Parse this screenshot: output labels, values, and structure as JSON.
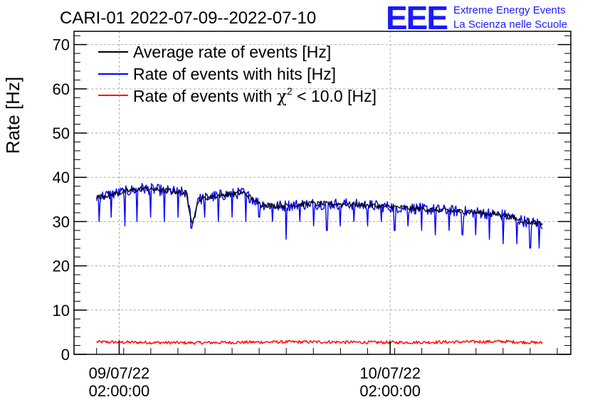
{
  "colors": {
    "average": "#000000",
    "hits": "#0000ff",
    "chi2": "#ff0000",
    "logo": "#1a1aff"
  },
  "header": {
    "title": "CARI-01 2022-07-09--2022-07-10",
    "logo_text": "EEE",
    "logo_line1": "Extreme Energy Events",
    "logo_line2": "La Scienza nelle Scuole"
  },
  "chart_data": {
    "type": "line",
    "title": "CARI-01 2022-07-09--2022-07-10",
    "xlabel": "",
    "ylabel": "Rate [Hz]",
    "ylim": [
      0,
      73
    ],
    "yticks": [
      0,
      10,
      20,
      30,
      40,
      50,
      60,
      70
    ],
    "x_unit": "hours since 2022-07-08 22:00",
    "xlim": [
      0,
      44
    ],
    "xticks": [
      {
        "x": 4,
        "label_date": "09/07/22",
        "label_time": "02:00:00"
      },
      {
        "x": 28,
        "label_date": "10/07/22",
        "label_time": "02:00:00"
      }
    ],
    "grid": true,
    "legend_position": "top-left",
    "series": [
      {
        "name": "Average rate of events [Hz]",
        "color": "#000000",
        "x": [
          2,
          4,
          6,
          8,
          9.9,
          10.2,
          10.5,
          11,
          13,
          15,
          16.5,
          18,
          21,
          24,
          27,
          30,
          33,
          36,
          38,
          40,
          41.5
        ],
        "y": [
          35.5,
          36.5,
          37.5,
          37,
          36.5,
          33,
          29.5,
          35,
          36,
          36.5,
          34,
          33.5,
          34,
          34,
          33.5,
          33,
          32.5,
          32,
          31.5,
          30,
          29.5
        ]
      },
      {
        "name": "Rate of events with hits [Hz]",
        "color": "#0000ff",
        "x": [
          2,
          4,
          6,
          8,
          9.9,
          10.2,
          10.5,
          11,
          13,
          15,
          16.5,
          18,
          21,
          24,
          27,
          30,
          33,
          36,
          38,
          40,
          41.5
        ],
        "y": [
          35.5,
          36.5,
          37.5,
          37,
          36.5,
          33,
          29.5,
          35,
          36,
          36.5,
          34,
          33.5,
          34,
          34,
          33.5,
          33,
          32.5,
          32,
          31.5,
          30,
          29.5
        ],
        "dips": [
          {
            "x": 2.2,
            "y": 30
          },
          {
            "x": 3.3,
            "y": 31
          },
          {
            "x": 4.5,
            "y": 29
          },
          {
            "x": 5.6,
            "y": 30
          },
          {
            "x": 6.8,
            "y": 31
          },
          {
            "x": 8.0,
            "y": 30
          },
          {
            "x": 9.2,
            "y": 31
          },
          {
            "x": 10.4,
            "y": 28.5
          },
          {
            "x": 11.6,
            "y": 31
          },
          {
            "x": 12.8,
            "y": 30
          },
          {
            "x": 14.0,
            "y": 31
          },
          {
            "x": 15.2,
            "y": 30
          },
          {
            "x": 16.4,
            "y": 31
          },
          {
            "x": 17.6,
            "y": 30
          },
          {
            "x": 18.8,
            "y": 26
          },
          {
            "x": 20.0,
            "y": 30
          },
          {
            "x": 21.2,
            "y": 29
          },
          {
            "x": 22.4,
            "y": 28
          },
          {
            "x": 23.6,
            "y": 29
          },
          {
            "x": 24.8,
            "y": 30
          },
          {
            "x": 26.0,
            "y": 29
          },
          {
            "x": 27.2,
            "y": 30
          },
          {
            "x": 28.4,
            "y": 28
          },
          {
            "x": 29.6,
            "y": 29
          },
          {
            "x": 30.8,
            "y": 28
          },
          {
            "x": 32.0,
            "y": 27
          },
          {
            "x": 33.2,
            "y": 28
          },
          {
            "x": 34.4,
            "y": 27
          },
          {
            "x": 35.6,
            "y": 27
          },
          {
            "x": 36.8,
            "y": 26
          },
          {
            "x": 38.0,
            "y": 25
          },
          {
            "x": 39.2,
            "y": 25
          },
          {
            "x": 40.4,
            "y": 24
          },
          {
            "x": 41.2,
            "y": 24
          }
        ]
      },
      {
        "name": "Rate of events with χ² < 10.0 [Hz]",
        "color": "#ff0000",
        "x": [
          2,
          6,
          10,
          14,
          18,
          22,
          26,
          30,
          34,
          38,
          41.5
        ],
        "y": [
          2.8,
          2.7,
          2.6,
          2.7,
          2.8,
          2.8,
          2.7,
          2.7,
          2.8,
          2.9,
          2.6
        ]
      }
    ]
  },
  "legend": [
    {
      "label": "Average rate of events [Hz]",
      "color": "#000000"
    },
    {
      "label": "Rate of events with hits [Hz]",
      "color": "#0000ff"
    },
    {
      "label_prefix": "Rate of events with ",
      "label_symbol": "χ",
      "label_sup": "2",
      "label_suffix": " < 10.0 [Hz]",
      "color": "#ff0000"
    }
  ]
}
